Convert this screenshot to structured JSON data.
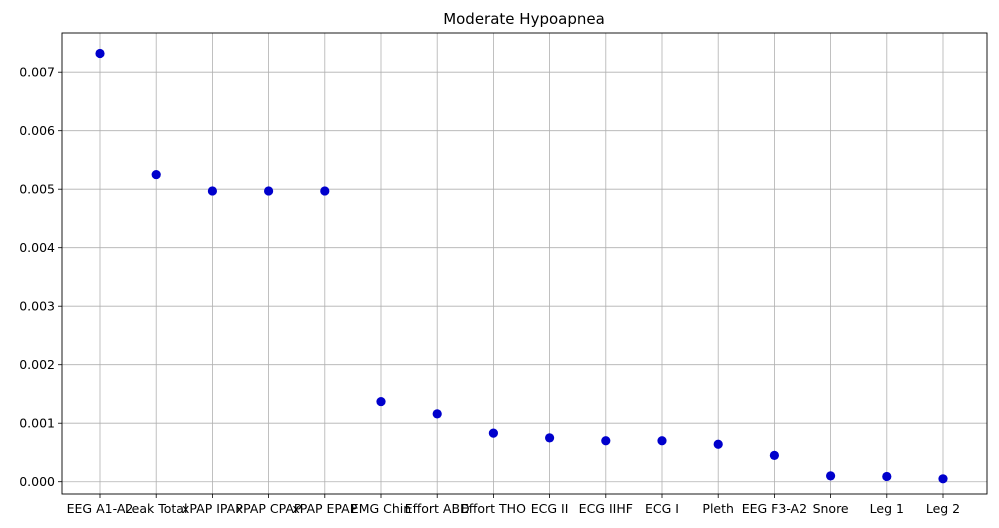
{
  "chart_data": {
    "type": "scatter",
    "title": "Moderate Hypoapnea",
    "xlabel": "",
    "ylabel": "",
    "categories": [
      "EEG A1-A2",
      "Leak Total",
      "xPAP IPAP",
      "xPAP CPAP",
      "xPAP EPAP",
      "EMG Chin",
      "Effort ABD",
      "Effort THO",
      "ECG II",
      "ECG IIHF",
      "ECG I",
      "Pleth",
      "EEG F3-A2",
      "Snore",
      "Leg 1",
      "Leg 2"
    ],
    "values": [
      0.00732,
      0.00525,
      0.00497,
      0.00497,
      0.00497,
      0.00137,
      0.00116,
      0.00083,
      0.00075,
      0.0007,
      0.0007,
      0.00064,
      0.00045,
      0.0001,
      9e-05,
      5e-05
    ],
    "ylim": [
      -0.00021,
      0.00767
    ],
    "yticks": [
      "0.000",
      "0.001",
      "0.002",
      "0.003",
      "0.004",
      "0.005",
      "0.006",
      "0.007"
    ],
    "ytick_values": [
      0,
      0.001,
      0.002,
      0.003,
      0.004,
      0.005,
      0.006,
      0.007
    ],
    "grid": true,
    "marker_color": "#0000cc"
  }
}
